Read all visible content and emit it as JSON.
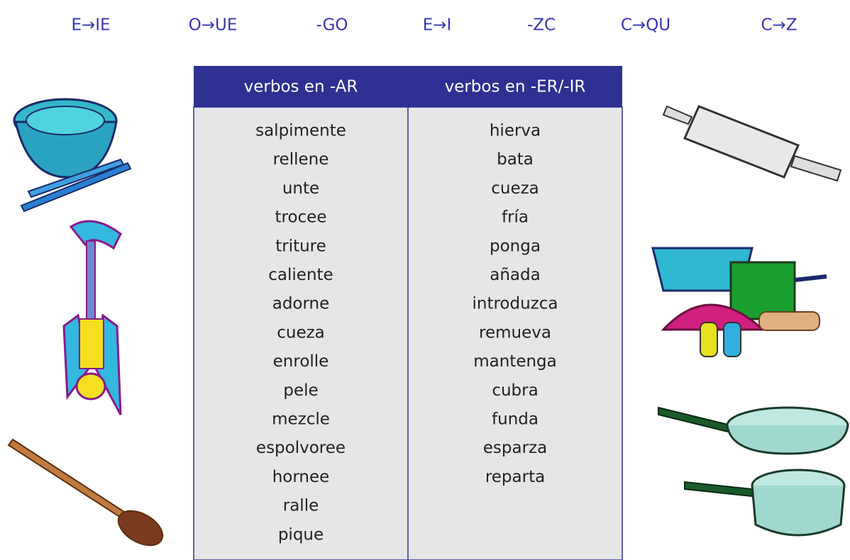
{
  "top_labels": [
    "E→IE",
    "O→UE",
    "-GO",
    "E→I",
    "-ZC",
    "C→QU",
    "C→Z"
  ],
  "table": {
    "headers": [
      "verbos en -AR",
      "verbos en -ER/-IR"
    ],
    "columns": [
      [
        "salpimente",
        "rellene",
        "unte",
        "trocee",
        "triture",
        "caliente",
        "adorne",
        "cueza",
        "enrolle",
        "pele",
        "mezcle",
        "espolvoree",
        "hornee",
        "ralle",
        "pique"
      ],
      [
        "hierva",
        "bata",
        "cueza",
        "fría",
        "ponga",
        "añada",
        "introduzca",
        "remueva",
        "mantenga",
        "cubra",
        "funda",
        "esparza",
        "reparta"
      ]
    ]
  }
}
